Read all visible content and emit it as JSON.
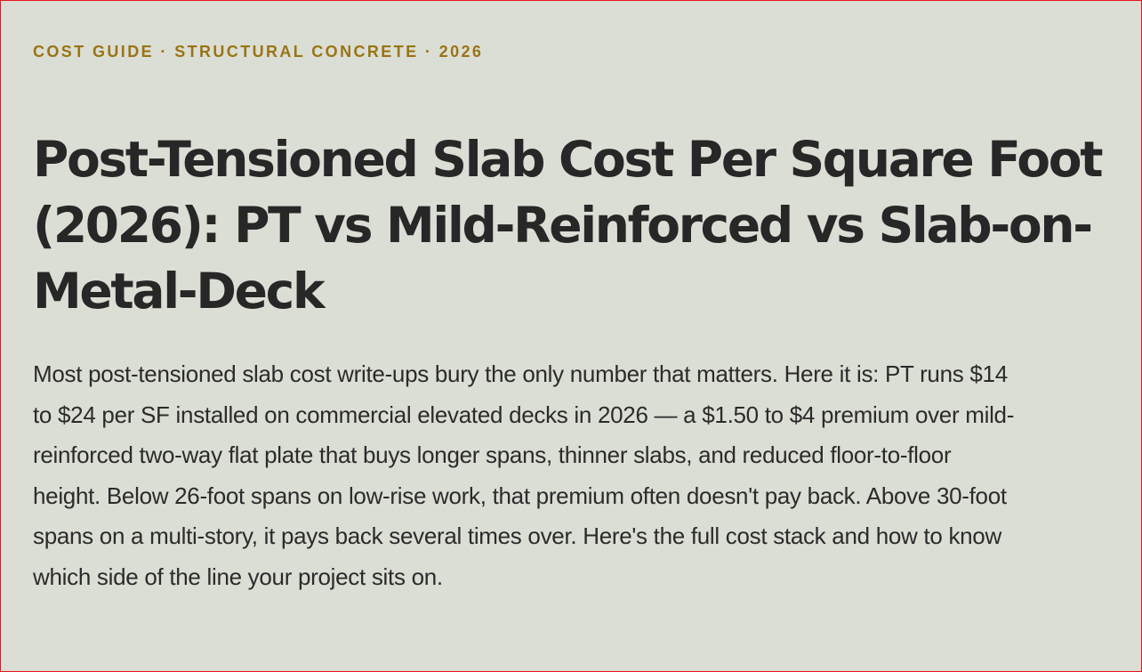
{
  "article": {
    "eyebrow": "COST GUIDE · STRUCTURAL CONCRETE · 2026",
    "title": "Post-Tensioned Slab Cost Per Square Foot (2026): PT vs Mild-Reinforced vs Slab-on-Metal-Deck",
    "intro": "Most post-tensioned slab cost write-ups bury the only number that matters. Here it is: PT runs $14 to $24 per SF installed on commercial elevated decks in 2026 — a $1.50 to $4 premium over mild-reinforced two-way flat plate that buys longer spans, thinner slabs, and reduced floor-to-floor height. Below 26-foot spans on low-rise work, that premium often doesn't pay back. Above 30-foot spans on a multi-story, it pays back several times over. Here's the full cost stack and how to know which side of the line your project sits on."
  },
  "colors": {
    "background": "#dbded5",
    "eyebrow": "#9a7414",
    "heading": "#272727",
    "body_text": "#2b2b2b",
    "frame_border": "#e8141b"
  }
}
